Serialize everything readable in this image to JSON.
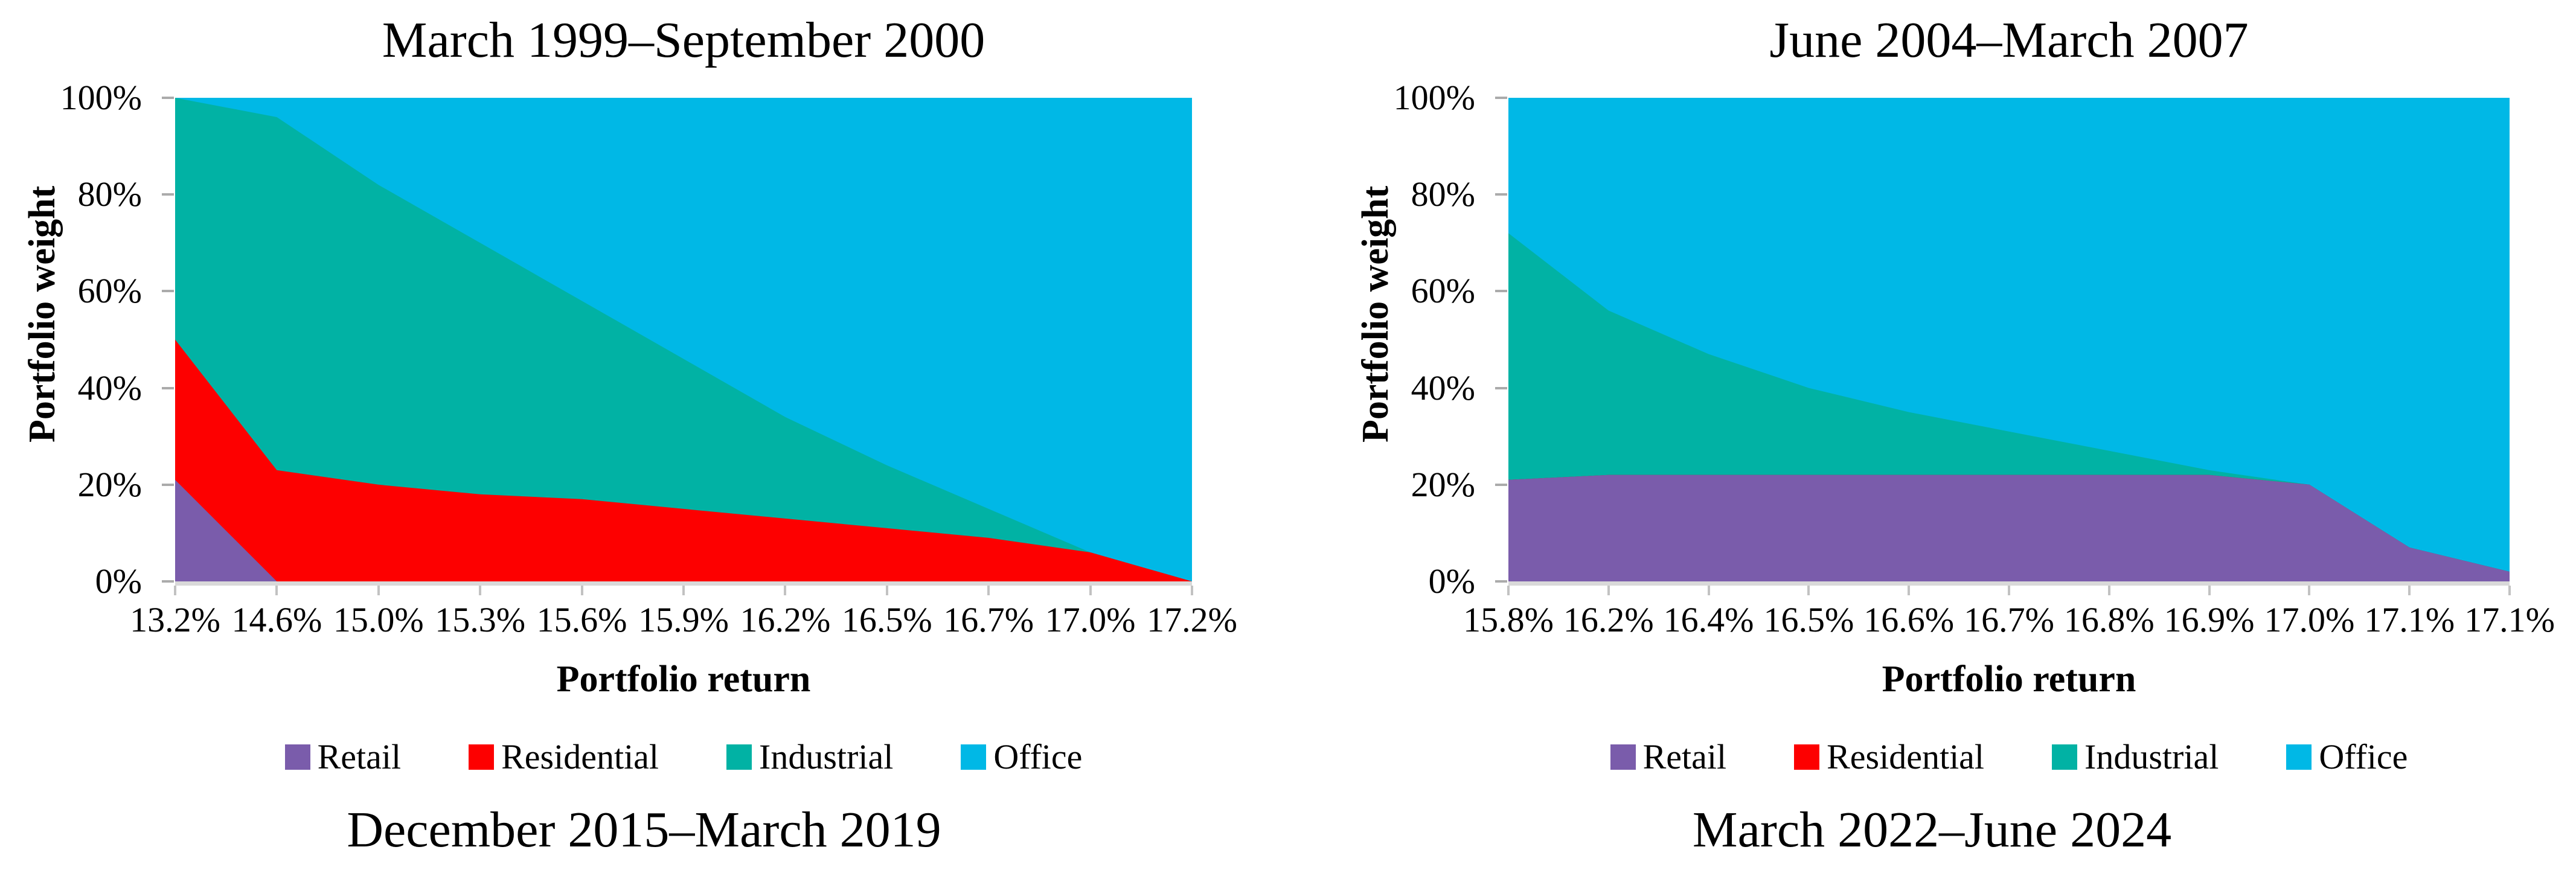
{
  "figure": {
    "background": "#ffffff",
    "colors": {
      "retail": "#7A5CAB",
      "residential": "#FD0000",
      "industrial": "#01B2A4",
      "office": "#00B8E6",
      "axis_line": "#D9D9D9",
      "tick_mark": "#ABABAB",
      "text": "#000000"
    }
  },
  "chart_data": [
    {
      "type": "area",
      "stacked": true,
      "percent_stacked": true,
      "title": "March 1999–September 2000",
      "caption": "December 2015–March 2019",
      "xlabel": "Portfolio return",
      "ylabel": "Portfolio weight",
      "grid": false,
      "legend_position": "bottom",
      "ylim": [
        0,
        100
      ],
      "y_ticks": [
        "0%",
        "20%",
        "40%",
        "60%",
        "80%",
        "100%"
      ],
      "x": [
        "13.2%",
        "14.6%",
        "15.0%",
        "15.3%",
        "15.6%",
        "15.9%",
        "16.2%",
        "16.5%",
        "16.7%",
        "17.0%",
        "17.2%"
      ],
      "series": [
        {
          "name": "Retail",
          "color": "#7A5CAB",
          "values": [
            21,
            0,
            0,
            0,
            0,
            0,
            0,
            0,
            0,
            0,
            0
          ]
        },
        {
          "name": "Residential",
          "color": "#FD0000",
          "values": [
            29,
            23,
            20,
            18,
            17,
            15,
            13,
            11,
            9,
            6,
            0
          ]
        },
        {
          "name": "Industrial",
          "color": "#01B2A4",
          "values": [
            50,
            73,
            62,
            52,
            41,
            31,
            21,
            13,
            6,
            0,
            0
          ]
        },
        {
          "name": "Office",
          "color": "#00B8E6",
          "values": [
            0,
            4,
            18,
            30,
            42,
            54,
            66,
            76,
            85,
            94,
            100
          ]
        }
      ]
    },
    {
      "type": "area",
      "stacked": true,
      "percent_stacked": true,
      "title": "June 2004–March 2007",
      "caption": "March 2022–June 2024",
      "xlabel": "Portfolio return",
      "ylabel": "Portfolio weight",
      "grid": false,
      "legend_position": "bottom",
      "ylim": [
        0,
        100
      ],
      "y_ticks": [
        "0%",
        "20%",
        "40%",
        "60%",
        "80%",
        "100%"
      ],
      "x": [
        "15.8%",
        "16.2%",
        "16.4%",
        "16.5%",
        "16.6%",
        "16.7%",
        "16.8%",
        "16.9%",
        "17.0%",
        "17.1%",
        "17.1%"
      ],
      "series": [
        {
          "name": "Retail",
          "color": "#7A5CAB",
          "values": [
            21,
            22,
            22,
            22,
            22,
            22,
            22,
            22,
            20,
            7,
            2
          ]
        },
        {
          "name": "Residential",
          "color": "#FD0000",
          "values": [
            0,
            0,
            0,
            0,
            0,
            0,
            0,
            0,
            0,
            0,
            0
          ]
        },
        {
          "name": "Industrial",
          "color": "#01B2A4",
          "values": [
            51,
            34,
            25,
            18,
            13,
            9,
            5,
            1,
            0,
            0,
            0
          ]
        },
        {
          "name": "Office",
          "color": "#00B8E6",
          "values": [
            28,
            44,
            53,
            60,
            65,
            69,
            73,
            77,
            80,
            93,
            98
          ]
        }
      ]
    }
  ]
}
